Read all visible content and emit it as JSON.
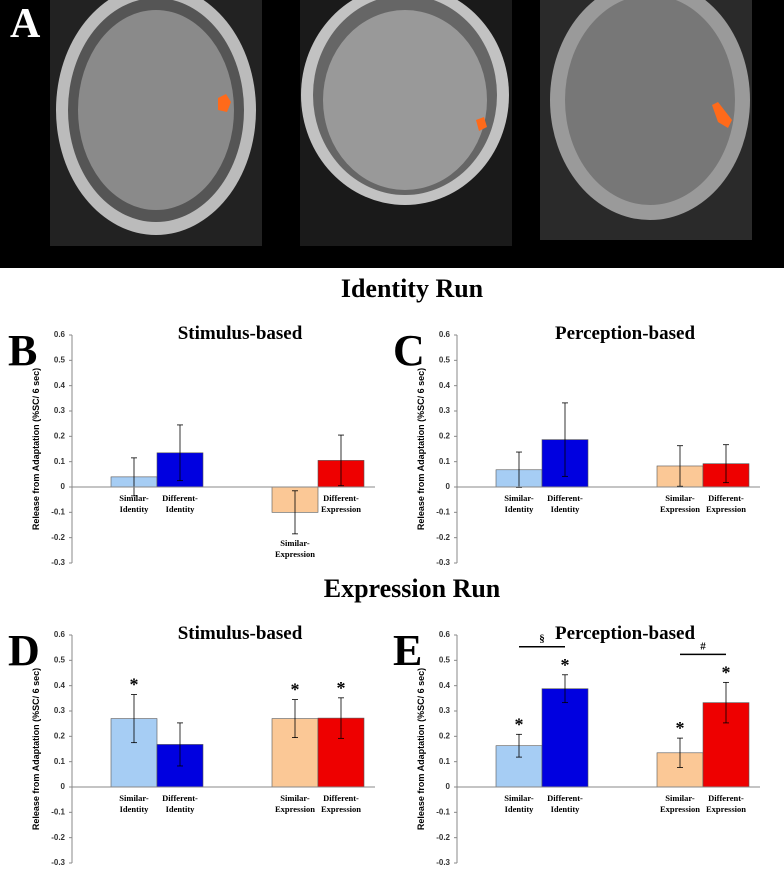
{
  "figure": {
    "panel_a_label": "A",
    "headings": [
      "Identity Run",
      "Expression Run"
    ]
  },
  "chart_data": [
    {
      "type": "bar",
      "panel": "B",
      "title": "Stimulus-based",
      "y_label": "Release from Adaptation (%SC/ 6 sec)",
      "categories": [
        "Similar-Identity",
        "Different-Identity",
        "Similar-Expression",
        "Different-Expression"
      ],
      "values": [
        0.04,
        0.135,
        -0.1,
        0.105
      ],
      "errors": [
        0.075,
        0.11,
        0.085,
        0.1
      ],
      "colors": [
        "#a6cdf4",
        "#0000e0",
        "#fbc896",
        "#ee0000"
      ],
      "ylim": [
        -0.3,
        0.6
      ],
      "yticks": [
        -0.3,
        -0.2,
        -0.1,
        0,
        0.1,
        0.2,
        0.3,
        0.4,
        0.5,
        0.6
      ]
    },
    {
      "type": "bar",
      "panel": "C",
      "title": "Perception-based",
      "y_label": "Release from Adaptation (%SC/ 6 sec)",
      "categories": [
        "Similar-Identity",
        "Different-Identity",
        "Similar-Expression",
        "Different-Expression"
      ],
      "values": [
        0.068,
        0.187,
        0.083,
        0.092
      ],
      "errors": [
        0.07,
        0.145,
        0.08,
        0.075
      ],
      "colors": [
        "#a6cdf4",
        "#0000e0",
        "#fbc896",
        "#ee0000"
      ],
      "ylim": [
        -0.3,
        0.6
      ],
      "yticks": [
        -0.3,
        -0.2,
        -0.1,
        0,
        0.1,
        0.2,
        0.3,
        0.4,
        0.5,
        0.6
      ]
    },
    {
      "type": "bar",
      "panel": "D",
      "title": "Stimulus-based",
      "y_label": "Release from Adaptation (%SC/ 6 sec)",
      "categories": [
        "Similar-Identity",
        "Different-Identity",
        "Similar-Expression",
        "Different-Expression"
      ],
      "values": [
        0.27,
        0.168,
        0.27,
        0.272
      ],
      "errors": [
        0.095,
        0.085,
        0.075,
        0.08
      ],
      "colors": [
        "#a6cdf4",
        "#0000e0",
        "#fbc896",
        "#ee0000"
      ],
      "significance": [
        "*",
        null,
        "*",
        "*"
      ],
      "ylim": [
        -0.3,
        0.6
      ],
      "yticks": [
        -0.3,
        -0.2,
        -0.1,
        0,
        0.1,
        0.2,
        0.3,
        0.4,
        0.5,
        0.6
      ]
    },
    {
      "type": "bar",
      "panel": "E",
      "title": "Perception-based",
      "y_label": "Release from Adaptation (%SC/ 6 sec)",
      "categories": [
        "Similar-Identity",
        "Different-Identity",
        "Similar-Expression",
        "Different-Expression"
      ],
      "values": [
        0.163,
        0.388,
        0.135,
        0.333
      ],
      "errors": [
        0.045,
        0.055,
        0.058,
        0.08
      ],
      "colors": [
        "#a6cdf4",
        "#0000e0",
        "#fbc896",
        "#ee0000"
      ],
      "significance": [
        "*",
        "*",
        "*",
        "*"
      ],
      "brackets": [
        "§",
        "#"
      ],
      "ylim": [
        -0.3,
        0.6
      ],
      "yticks": [
        -0.3,
        -0.2,
        -0.1,
        0,
        0.1,
        0.2,
        0.3,
        0.4,
        0.5,
        0.6
      ]
    }
  ]
}
